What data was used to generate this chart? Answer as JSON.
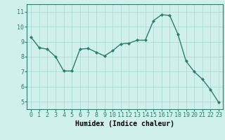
{
  "x": [
    0,
    1,
    2,
    3,
    4,
    5,
    6,
    7,
    8,
    9,
    10,
    11,
    12,
    13,
    14,
    15,
    16,
    17,
    18,
    19,
    20,
    21,
    22,
    23
  ],
  "y": [
    9.3,
    8.6,
    8.5,
    8.0,
    7.05,
    7.05,
    8.5,
    8.55,
    8.3,
    8.05,
    8.4,
    8.85,
    8.9,
    9.1,
    9.1,
    10.4,
    10.8,
    10.75,
    9.5,
    7.7,
    7.0,
    6.5,
    5.8,
    4.95
  ],
  "line_color": "#2e7d6e",
  "marker": "D",
  "markersize": 2.0,
  "linewidth": 1.0,
  "bg_color": "#cff0eb",
  "grid_color": "#a8d8d0",
  "xlabel": "Humidex (Indice chaleur)",
  "xlabel_fontsize": 7,
  "tick_fontsize": 6,
  "ylim": [
    4.5,
    11.5
  ],
  "xlim": [
    -0.5,
    23.5
  ],
  "yticks": [
    5,
    6,
    7,
    8,
    9,
    10,
    11
  ],
  "xticks": [
    0,
    1,
    2,
    3,
    4,
    5,
    6,
    7,
    8,
    9,
    10,
    11,
    12,
    13,
    14,
    15,
    16,
    17,
    18,
    19,
    20,
    21,
    22,
    23
  ],
  "spine_color": "#2e7d6e"
}
